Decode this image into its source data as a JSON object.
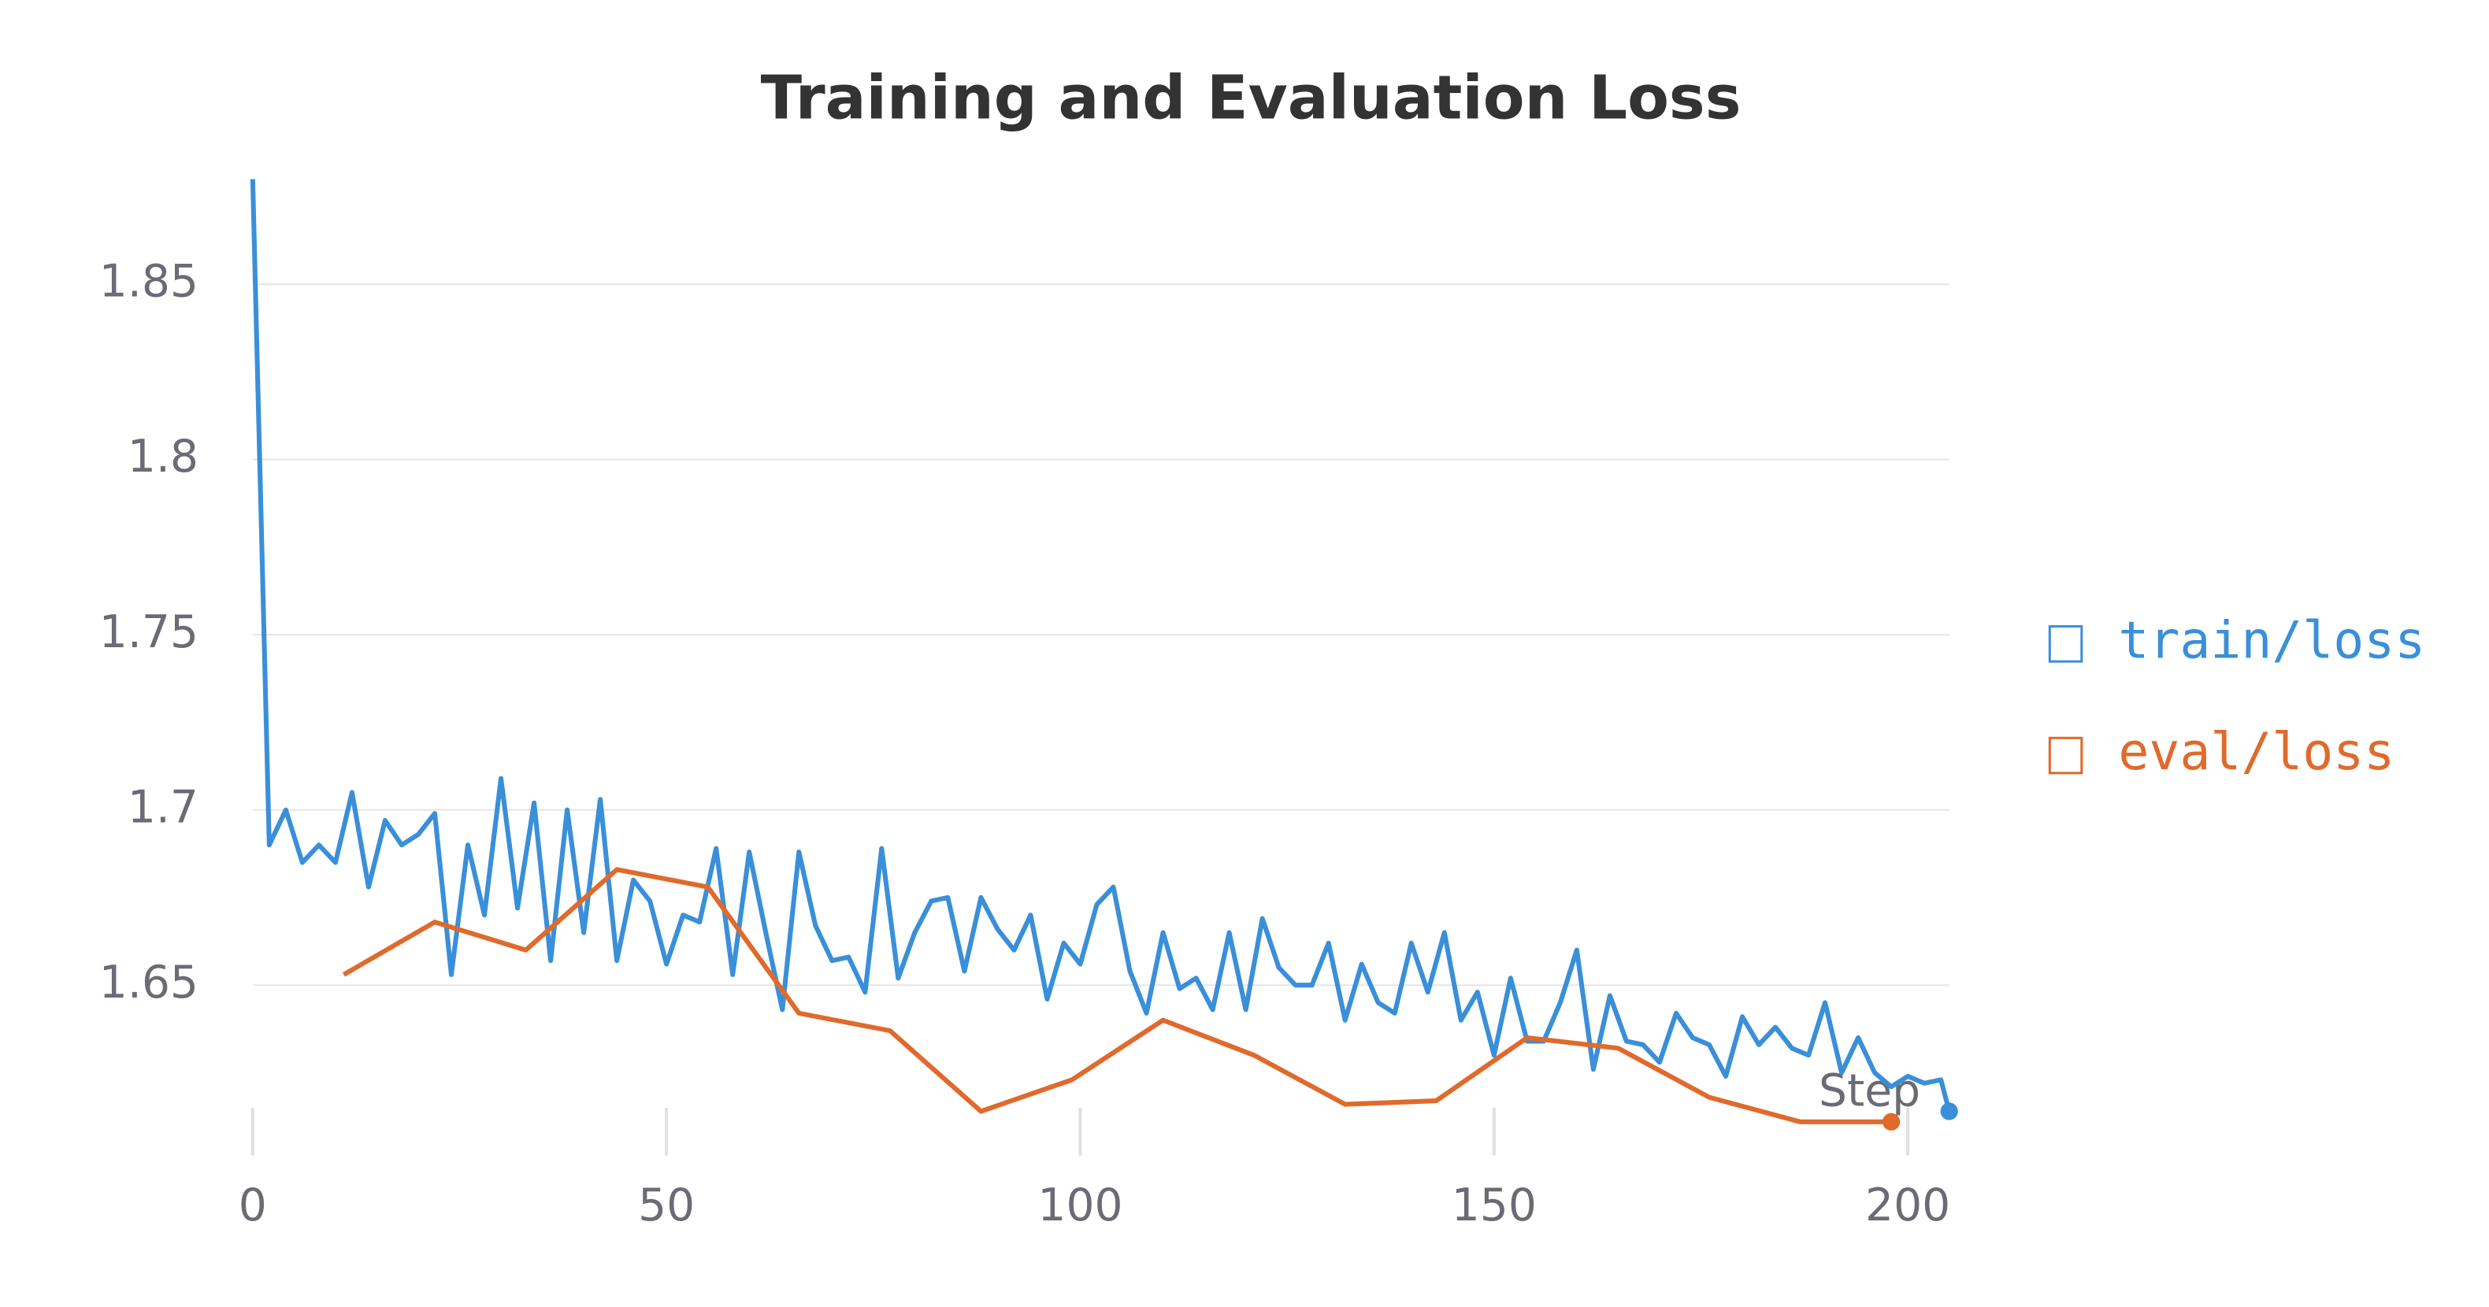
{
  "chart_data": {
    "type": "line",
    "title": "Training and Evaluation Loss",
    "xlabel": "Step",
    "xlim": [
      0,
      205
    ],
    "ylim": [
      1.6,
      1.882
    ],
    "xticks": [
      0,
      50,
      100,
      150,
      200
    ],
    "yticks": [
      1.65,
      1.7,
      1.75,
      1.8,
      1.85
    ],
    "grid": true,
    "legend": "right",
    "series": [
      {
        "name": "train/loss",
        "color": "#3a8fd9",
        "x": [
          0,
          2,
          4,
          6,
          8,
          10,
          12,
          14,
          16,
          18,
          20,
          22,
          24,
          26,
          28,
          30,
          32,
          34,
          36,
          38,
          40,
          42,
          44,
          46,
          48,
          50,
          52,
          54,
          56,
          58,
          60,
          62,
          64,
          66,
          68,
          70,
          72,
          74,
          76,
          78,
          80,
          82,
          84,
          86,
          88,
          90,
          92,
          94,
          96,
          98,
          100,
          102,
          104,
          106,
          108,
          110,
          112,
          114,
          116,
          118,
          120,
          122,
          124,
          126,
          128,
          130,
          132,
          134,
          136,
          138,
          140,
          142,
          144,
          146,
          148,
          150,
          152,
          154,
          156,
          158,
          160,
          162,
          164,
          166,
          168,
          170,
          172,
          174,
          176,
          178,
          180,
          182,
          184,
          186,
          188,
          190,
          192,
          194,
          196,
          198,
          200,
          202,
          204,
          205
        ],
        "values": [
          1.88,
          1.69,
          1.7,
          1.685,
          1.69,
          1.685,
          1.705,
          1.678,
          1.697,
          1.69,
          1.693,
          1.699,
          1.653,
          1.69,
          1.67,
          1.709,
          1.672,
          1.702,
          1.657,
          1.7,
          1.665,
          1.703,
          1.657,
          1.68,
          1.674,
          1.656,
          1.67,
          1.668,
          1.689,
          1.653,
          1.688,
          1.665,
          1.643,
          1.688,
          1.667,
          1.657,
          1.658,
          1.648,
          1.689,
          1.652,
          1.665,
          1.674,
          1.675,
          1.654,
          1.675,
          1.666,
          1.66,
          1.67,
          1.646,
          1.662,
          1.656,
          1.673,
          1.678,
          1.654,
          1.642,
          1.665,
          1.649,
          1.652,
          1.643,
          1.665,
          1.643,
          1.669,
          1.655,
          1.65,
          1.65,
          1.662,
          1.64,
          1.656,
          1.645,
          1.642,
          1.662,
          1.648,
          1.665,
          1.64,
          1.648,
          1.63,
          1.652,
          1.634,
          1.634,
          1.645,
          1.66,
          1.626,
          1.647,
          1.634,
          1.633,
          1.628,
          1.642,
          1.635,
          1.633,
          1.624,
          1.641,
          1.633,
          1.638,
          1.632,
          1.63,
          1.645,
          1.625,
          1.635,
          1.625,
          1.621,
          1.624,
          1.622,
          1.623,
          1.614
        ]
      },
      {
        "name": "eval/loss",
        "color": "#e06a2c",
        "x": [
          11,
          22,
          33,
          44,
          55,
          66,
          77,
          88,
          99,
          110,
          121,
          132,
          143,
          154,
          165,
          176,
          187,
          198
        ],
        "values": [
          1.653,
          1.668,
          1.66,
          1.683,
          1.678,
          1.642,
          1.637,
          1.614,
          1.623,
          1.64,
          1.63,
          1.616,
          1.617,
          1.635,
          1.632,
          1.618,
          1.611,
          1.611
        ]
      }
    ]
  }
}
